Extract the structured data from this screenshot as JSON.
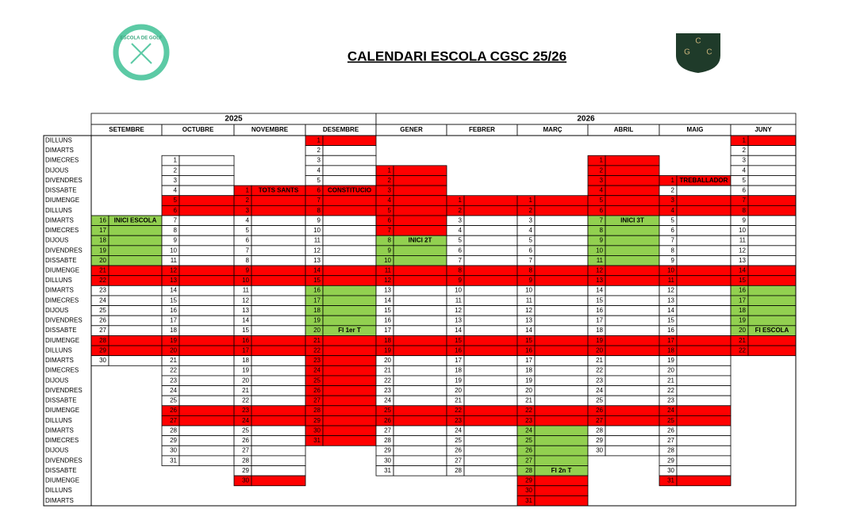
{
  "header": {
    "title": "CALENDARI ESCOLA CGSC 25/26",
    "left_logo": "ESCOLA DE GOLF",
    "right_logo": [
      "C",
      "G",
      "C"
    ]
  },
  "calendar": {
    "red_color": "#ff0000",
    "green_color": "#92d050",
    "row_labels": [
      "DILLUNS",
      "DIMARTS",
      "DIMECRES",
      "DIJOUS",
      "DIVENDRES",
      "DISSABTE",
      "DIUMENGE",
      "DILLUNS",
      "DIMARTS",
      "DIMECRES",
      "DIJOUS",
      "DIVENDRES",
      "DISSABTE",
      "DIUMENGE",
      "DILLUNS",
      "DIMARTS",
      "DIMECRES",
      "DIJOUS",
      "DIVENDRES",
      "DISSABTE",
      "DIUMENGE",
      "DILLUNS",
      "DIMARTS",
      "DIMECRES",
      "DIJOUS",
      "DIVENDRES",
      "DISSABTE",
      "DIUMENGE",
      "DILLUNS",
      "DIMARTS",
      "DIMECRES",
      "DIJOUS",
      "DIVENDRES",
      "DISSABTE",
      "DIUMENGE",
      "DILLUNS",
      "DIMARTS"
    ],
    "years": [
      {
        "label": "2025",
        "months": [
          {
            "name": "SETEMBRE",
            "days": [
              null,
              null,
              null,
              null,
              null,
              null,
              null,
              null,
              16,
              17,
              18,
              19,
              20,
              21,
              22,
              23,
              24,
              25,
              26,
              27,
              28,
              29,
              30,
              null,
              null,
              null,
              null,
              null,
              null,
              null,
              null,
              null,
              null,
              null,
              null,
              null,
              null
            ],
            "red": [
              21,
              22,
              28,
              29
            ],
            "green": [
              16,
              17,
              18,
              19,
              20
            ],
            "notes": [
              {
                "day": 16,
                "text": "INICI ESCOLA"
              }
            ]
          },
          {
            "name": "OCTUBRE",
            "days": [
              null,
              null,
              1,
              2,
              3,
              4,
              5,
              6,
              7,
              8,
              9,
              10,
              11,
              12,
              13,
              14,
              15,
              16,
              17,
              18,
              19,
              20,
              21,
              22,
              23,
              24,
              25,
              26,
              27,
              28,
              29,
              30,
              31,
              null,
              null,
              null,
              null
            ],
            "red": [
              5,
              6,
              12,
              13,
              19,
              20,
              26,
              27
            ],
            "green": [],
            "notes": []
          },
          {
            "name": "NOVEMBRE",
            "days": [
              null,
              null,
              null,
              null,
              null,
              1,
              2,
              3,
              4,
              5,
              6,
              7,
              8,
              9,
              10,
              11,
              12,
              13,
              14,
              15,
              16,
              17,
              18,
              19,
              20,
              21,
              22,
              23,
              24,
              25,
              26,
              27,
              28,
              29,
              30,
              null,
              null
            ],
            "red": [
              1,
              2,
              3,
              9,
              10,
              16,
              17,
              23,
              24,
              30
            ],
            "green": [],
            "notes": [
              {
                "day": 1,
                "text": "TOTS SANTS"
              }
            ]
          },
          {
            "name": "DESEMBRE",
            "days": [
              1,
              2,
              3,
              4,
              5,
              6,
              7,
              8,
              9,
              10,
              11,
              12,
              13,
              14,
              15,
              16,
              17,
              18,
              19,
              20,
              21,
              22,
              23,
              24,
              25,
              26,
              27,
              28,
              29,
              30,
              31,
              null,
              null,
              null,
              null,
              null,
              null
            ],
            "red": [
              1,
              6,
              7,
              8,
              14,
              15,
              21,
              22,
              23,
              24,
              25,
              26,
              27,
              28,
              29,
              30,
              31
            ],
            "green": [
              16,
              17,
              18,
              19,
              20
            ],
            "notes": [
              {
                "day": 6,
                "text": "CONSTITUCIO"
              },
              {
                "day": 20,
                "text": "FI 1er T"
              }
            ]
          }
        ]
      },
      {
        "label": "2026",
        "months": [
          {
            "name": "GENER",
            "days": [
              null,
              null,
              null,
              1,
              2,
              3,
              4,
              5,
              6,
              7,
              8,
              9,
              10,
              11,
              12,
              13,
              14,
              15,
              16,
              17,
              18,
              19,
              20,
              21,
              22,
              23,
              24,
              25,
              26,
              27,
              28,
              29,
              30,
              31,
              null,
              null,
              null
            ],
            "red": [
              1,
              2,
              3,
              4,
              5,
              6,
              7,
              11,
              12,
              18,
              19,
              25,
              26
            ],
            "green": [
              8,
              9,
              10
            ],
            "notes": [
              {
                "day": 8,
                "text": "INICI 2T"
              }
            ]
          },
          {
            "name": "FEBRER",
            "days": [
              null,
              null,
              null,
              null,
              null,
              null,
              1,
              2,
              3,
              4,
              5,
              6,
              7,
              8,
              9,
              10,
              11,
              12,
              13,
              14,
              15,
              16,
              17,
              18,
              19,
              20,
              21,
              22,
              23,
              24,
              25,
              26,
              27,
              28,
              null,
              null,
              null
            ],
            "red": [
              1,
              2,
              8,
              9,
              15,
              16,
              22,
              23
            ],
            "green": [],
            "notes": []
          },
          {
            "name": "MARÇ",
            "days": [
              null,
              null,
              null,
              null,
              null,
              null,
              1,
              2,
              3,
              4,
              5,
              6,
              7,
              8,
              9,
              10,
              11,
              12,
              13,
              14,
              15,
              16,
              17,
              18,
              19,
              20,
              21,
              22,
              23,
              24,
              25,
              26,
              27,
              28,
              29,
              30,
              31
            ],
            "red": [
              1,
              2,
              8,
              9,
              15,
              16,
              22,
              23,
              29,
              30,
              31
            ],
            "green": [
              24,
              25,
              26,
              27,
              28
            ],
            "notes": [
              {
                "day": 28,
                "text": "FI 2n T"
              }
            ]
          },
          {
            "name": "ABRIL",
            "days": [
              null,
              null,
              1,
              2,
              3,
              4,
              5,
              6,
              7,
              8,
              9,
              10,
              11,
              12,
              13,
              14,
              15,
              16,
              17,
              18,
              19,
              20,
              21,
              22,
              23,
              24,
              25,
              26,
              27,
              28,
              29,
              30,
              null,
              null,
              null,
              null,
              null
            ],
            "red": [
              1,
              2,
              3,
              4,
              5,
              6,
              12,
              13,
              19,
              20,
              26,
              27
            ],
            "green": [
              7,
              8,
              9,
              10,
              11
            ],
            "notes": [
              {
                "day": 7,
                "text": "INICI 3T"
              }
            ]
          },
          {
            "name": "MAIG",
            "days": [
              null,
              null,
              null,
              null,
              1,
              2,
              3,
              4,
              5,
              6,
              7,
              8,
              9,
              10,
              11,
              12,
              13,
              14,
              15,
              16,
              17,
              18,
              19,
              20,
              21,
              22,
              23,
              24,
              25,
              26,
              27,
              28,
              29,
              30,
              31,
              null,
              null
            ],
            "red": [
              1,
              3,
              4,
              10,
              11,
              17,
              18,
              24,
              25,
              31
            ],
            "green": [],
            "notes": [
              {
                "day": 1,
                "text": "TREBALLADOR"
              }
            ]
          },
          {
            "name": "JUNY",
            "days": [
              1,
              2,
              3,
              4,
              5,
              6,
              7,
              8,
              9,
              10,
              11,
              12,
              13,
              14,
              15,
              16,
              17,
              18,
              19,
              20,
              21,
              22,
              null,
              null,
              null,
              null,
              null,
              null,
              null,
              null,
              null,
              null,
              null,
              null,
              null,
              null,
              null
            ],
            "red": [
              1,
              7,
              8,
              14,
              15,
              21,
              22
            ],
            "green": [
              16,
              17,
              18,
              19,
              20
            ],
            "notes": [
              {
                "day": 20,
                "text": "FI ESCOLA"
              }
            ]
          }
        ]
      }
    ]
  }
}
